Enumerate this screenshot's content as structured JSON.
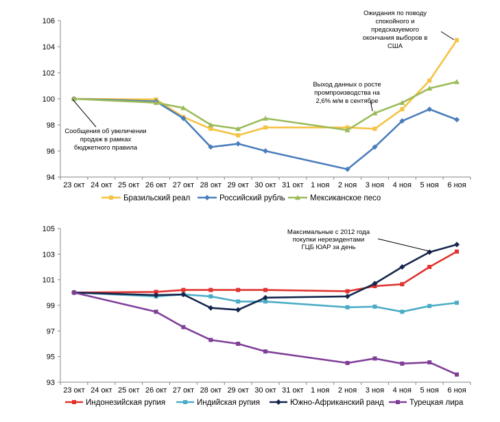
{
  "chart_data": [
    {
      "type": "line",
      "categories": [
        "23 окт",
        "24 окт",
        "25 окт",
        "26 окт",
        "27 окт",
        "28 окт",
        "29 окт",
        "30 окт",
        "31 окт",
        "1 ноя",
        "2 ноя",
        "3 ноя",
        "4 ноя",
        "5 ноя",
        "6 ноя"
      ],
      "ylim": [
        94,
        106
      ],
      "yticks": [
        94,
        96,
        98,
        100,
        102,
        104,
        106
      ],
      "grid": false,
      "legend": "bottom",
      "series": [
        {
          "name": "Бразильский реал",
          "color": "#F5C242",
          "marker": "square",
          "values": [
            100,
            null,
            null,
            99.95,
            98.6,
            97.7,
            97.2,
            97.8,
            null,
            null,
            97.8,
            97.7,
            99.2,
            101.4,
            104.5
          ]
        },
        {
          "name": "Российский рубль",
          "color": "#4A7EBB",
          "marker": "diamond",
          "values": [
            100,
            null,
            null,
            99.8,
            98.5,
            96.3,
            96.55,
            96.0,
            null,
            null,
            94.6,
            96.3,
            98.3,
            99.2,
            98.4
          ]
        },
        {
          "name": "Мексиканское песо",
          "color": "#9BBB59",
          "marker": "triangle",
          "values": [
            100,
            null,
            null,
            99.7,
            99.3,
            98.0,
            97.7,
            98.5,
            null,
            null,
            97.6,
            98.9,
            99.7,
            100.8,
            101.3
          ]
        }
      ],
      "annotations": [
        {
          "text": [
            "Сообщения об увеличении",
            "продаж в рамках",
            "бюджетного правила"
          ],
          "points_to": "23 окт"
        },
        {
          "text": [
            "Выход данных о росте",
            "промпроизводства на",
            "2,6% м/м в сентябре"
          ],
          "points_to": "3 ноя"
        },
        {
          "text": [
            "Ожидания по поводу",
            "спокойного и",
            "предсказуемого",
            "окончания выборов в",
            "США"
          ],
          "points_to": "6 ноя"
        }
      ]
    },
    {
      "type": "line",
      "categories": [
        "23 окт",
        "24 окт",
        "25 окт",
        "26 окт",
        "27 окт",
        "28 окт",
        "29 окт",
        "30 окт",
        "31 окт",
        "1 ноя",
        "2 ноя",
        "3 ноя",
        "4 ноя",
        "5 ноя",
        "6 ноя"
      ],
      "ylim": [
        93,
        105
      ],
      "yticks": [
        93,
        95,
        97,
        99,
        101,
        103,
        105
      ],
      "grid": false,
      "legend": "bottom",
      "series": [
        {
          "name": "Индонезийская рупия",
          "color": "#E0332F",
          "marker": "square",
          "values": [
            100,
            null,
            null,
            100.05,
            100.2,
            100.2,
            100.2,
            100.2,
            null,
            null,
            100.1,
            100.5,
            100.65,
            102.0,
            103.2
          ]
        },
        {
          "name": "Индийская рупия",
          "color": "#4BACC6",
          "marker": "square",
          "values": [
            100,
            null,
            null,
            99.7,
            99.85,
            99.7,
            99.3,
            99.3,
            null,
            null,
            98.85,
            98.9,
            98.5,
            98.95,
            99.2
          ]
        },
        {
          "name": "Южно-Африканский ранд",
          "color": "#14254C",
          "marker": "diamond",
          "values": [
            100,
            null,
            null,
            99.8,
            99.85,
            98.8,
            98.65,
            99.6,
            null,
            null,
            99.7,
            100.7,
            102.0,
            103.15,
            103.75
          ]
        },
        {
          "name": "Турецкая лира",
          "color": "#7F3F98",
          "marker": "square",
          "values": [
            100,
            null,
            null,
            98.5,
            97.3,
            96.3,
            96.0,
            95.4,
            null,
            null,
            94.5,
            94.85,
            94.45,
            94.55,
            93.6
          ]
        }
      ],
      "annotations": [
        {
          "text": [
            "Максимальные с 2012 года",
            "покупки нерезидентами",
            "ГЦБ ЮАР за день"
          ],
          "points_to": "5 ноя"
        }
      ]
    }
  ]
}
